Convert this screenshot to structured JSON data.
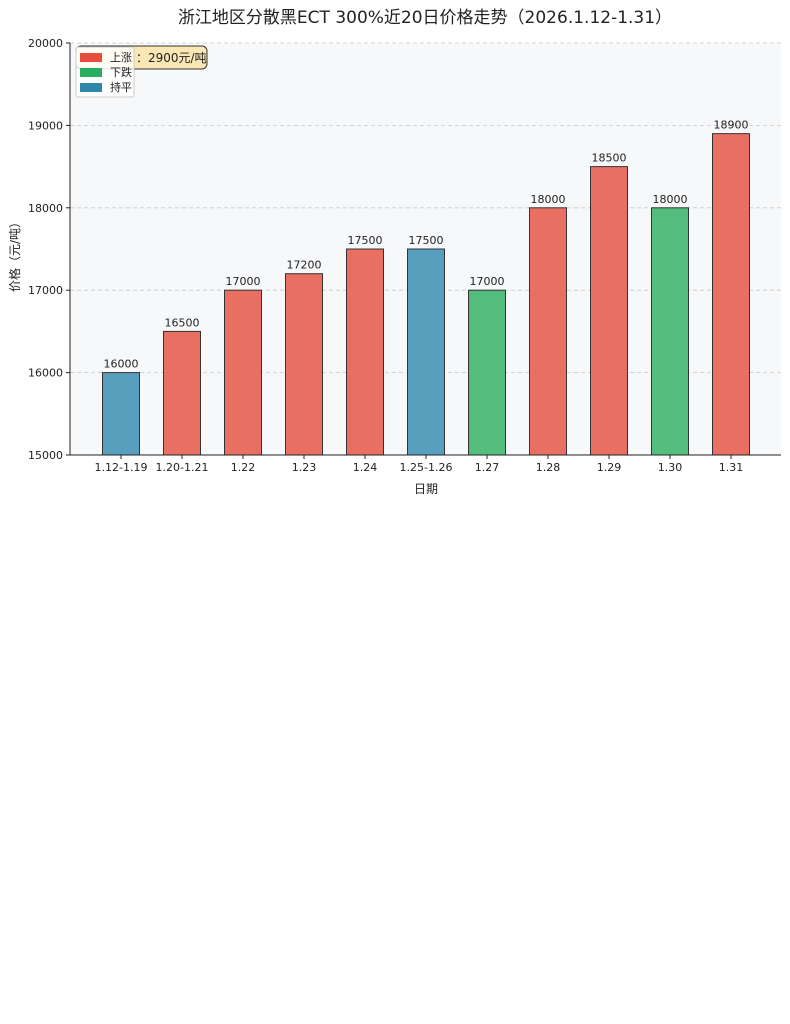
{
  "chart_data": {
    "type": "bar",
    "title": "浙江地区分散黑ECT 300%近20日价格走势（2026.1.12-1.31）",
    "xlabel": "日期",
    "ylabel": "价格（元/吨）",
    "ylim": [
      15000,
      20000
    ],
    "yticks": [
      "15000",
      "16000",
      "17000",
      "18000",
      "19000",
      "20000"
    ],
    "grid": "horizontal dashed",
    "legend_position": "top-left",
    "categories": [
      "1.12-1.19",
      "1.20-1.21",
      "1.22",
      "1.23",
      "1.24",
      "1.25-1.26",
      "1.27",
      "1.28",
      "1.29",
      "1.30",
      "1.31"
    ],
    "values": [
      16000,
      16500,
      17000,
      17200,
      17500,
      17500,
      17000,
      18000,
      18500,
      18000,
      18900
    ],
    "value_labels": [
      "16000",
      "16500",
      "17000",
      "17200",
      "17500",
      "17500",
      "17000",
      "18000",
      "18500",
      "18000",
      "18900"
    ],
    "status": [
      "flat",
      "up",
      "up",
      "up",
      "up",
      "flat",
      "down",
      "up",
      "up",
      "down",
      "up"
    ],
    "legend": [
      {
        "key": "up",
        "label": "上涨",
        "color": "#e74c3c"
      },
      {
        "key": "down",
        "label": "下跌",
        "color": "#27ae60"
      },
      {
        "key": "flat",
        "label": "持平",
        "color": "#2e86ab"
      }
    ],
    "bar_colors": {
      "up": "#e96f63",
      "down": "#52bd7c",
      "flat": "#579fbc"
    },
    "annotation": "：2900元/吨"
  }
}
